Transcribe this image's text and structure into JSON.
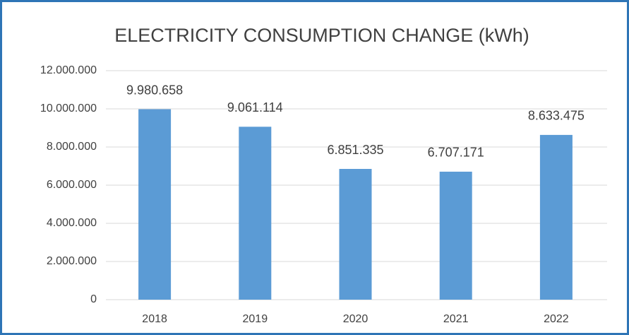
{
  "chart_data": {
    "type": "bar",
    "title": "ELECTRICITY CONSUMPTION CHANGE (kWh)",
    "categories": [
      "2018",
      "2019",
      "2020",
      "2021",
      "2022"
    ],
    "values": [
      9980658,
      9061114,
      6851335,
      6707171,
      8633475
    ],
    "value_labels": [
      "9.980.658",
      "9.061.114",
      "6.851.335",
      "6.707.171",
      "8.633.475"
    ],
    "color": "#5b9bd5",
    "ylim": [
      0,
      12000000
    ],
    "yticks": [
      0,
      {
        "value": 2000000,
        "label": "2.000.000"
      },
      {
        "value": 4000000,
        "label": "4.000.000"
      },
      {
        "value": 6000000,
        "label": "6.000.000"
      },
      {
        "value": 8000000,
        "label": "8.000.000"
      },
      {
        "value": 10000000,
        "label": "10.000.000"
      },
      {
        "value": 12000000,
        "label": "12.000.000"
      }
    ],
    "grid": true
  }
}
